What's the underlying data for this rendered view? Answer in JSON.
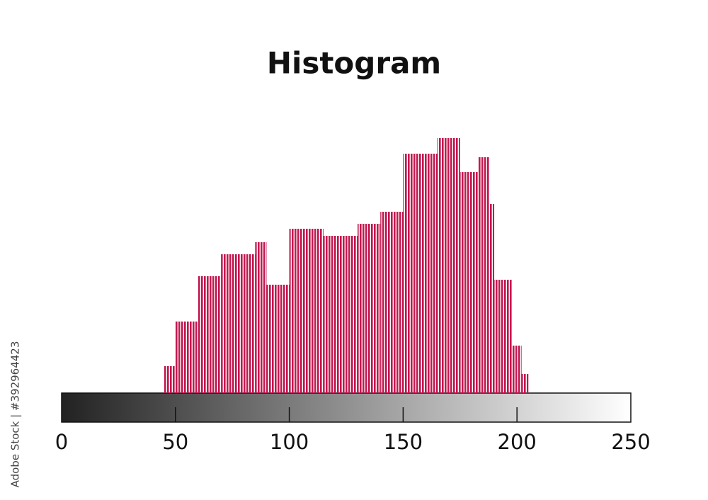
{
  "chart_data": {
    "type": "histogram",
    "title": "Histogram",
    "bins": [
      45,
      50,
      60,
      70,
      85,
      90,
      100,
      115,
      130,
      140,
      150,
      165,
      175,
      183,
      188,
      190,
      198,
      202,
      205
    ],
    "values": [
      38,
      101,
      165,
      196,
      213,
      153,
      232,
      222,
      239,
      256,
      338,
      360,
      312,
      333,
      267,
      160,
      67,
      27
    ],
    "color": "#c2174e",
    "xlim": [
      0,
      250
    ],
    "xticks": [
      0,
      50,
      100,
      150,
      200,
      250
    ],
    "ylim": [
      0,
      400
    ],
    "watermark": "Adobe Stock | #392964423"
  }
}
